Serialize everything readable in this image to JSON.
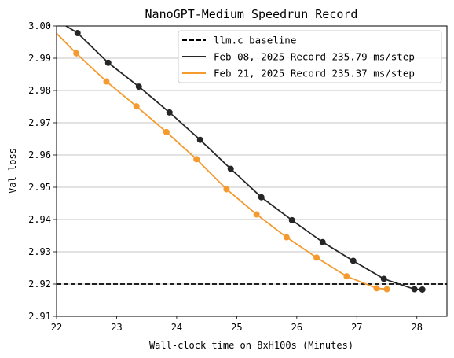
{
  "chart_data": {
    "type": "line",
    "title": "NanoGPT-Medium Speedrun Record",
    "xlabel": "Wall-clock time on 8xH100s (Minutes)",
    "ylabel": "Val loss",
    "xlim": [
      22.0,
      28.5
    ],
    "ylim": [
      2.91,
      3.0
    ],
    "xticks": [
      22,
      23,
      24,
      25,
      26,
      27,
      28
    ],
    "yticks": [
      2.91,
      2.92,
      2.93,
      2.94,
      2.95,
      2.96,
      2.97,
      2.98,
      2.99,
      3.0
    ],
    "xtick_labels": [
      "22",
      "23",
      "24",
      "25",
      "26",
      "27",
      "28"
    ],
    "ytick_labels": [
      "2.91",
      "2.92",
      "2.93",
      "2.94",
      "2.95",
      "2.96",
      "2.97",
      "2.98",
      "2.99",
      "3.00"
    ],
    "grid": "horizontal",
    "legend_position": "top-right",
    "baseline": {
      "name": "llm.c baseline",
      "y": 2.92,
      "color": "#000000",
      "style": "dashed"
    },
    "series": [
      {
        "name": "Feb 08, 2025 Record 235.79 ms/step",
        "color": "#262626",
        "x": [
          21.9,
          22.35,
          22.86,
          23.37,
          23.88,
          24.39,
          24.9,
          25.41,
          25.92,
          26.43,
          26.94,
          27.45,
          27.96,
          28.09
        ],
        "y": [
          3.003,
          2.9978,
          2.9886,
          2.9812,
          2.9732,
          2.9647,
          2.9557,
          2.9469,
          2.9398,
          2.933,
          2.9272,
          2.9216,
          2.9184,
          2.9183
        ],
        "markers_from": 1
      },
      {
        "name": "Feb 21, 2025 Record 235.37 ms/step",
        "color": "#f49a2e",
        "x": [
          22.0,
          22.33,
          22.83,
          23.33,
          23.83,
          24.33,
          24.83,
          25.33,
          25.83,
          26.33,
          26.83,
          27.33,
          27.5
        ],
        "y": [
          2.9977,
          2.9915,
          2.9828,
          2.9751,
          2.9671,
          2.9587,
          2.9494,
          2.9416,
          2.9345,
          2.9282,
          2.9224,
          2.9187,
          2.9184
        ],
        "markers_from": 1
      }
    ]
  }
}
